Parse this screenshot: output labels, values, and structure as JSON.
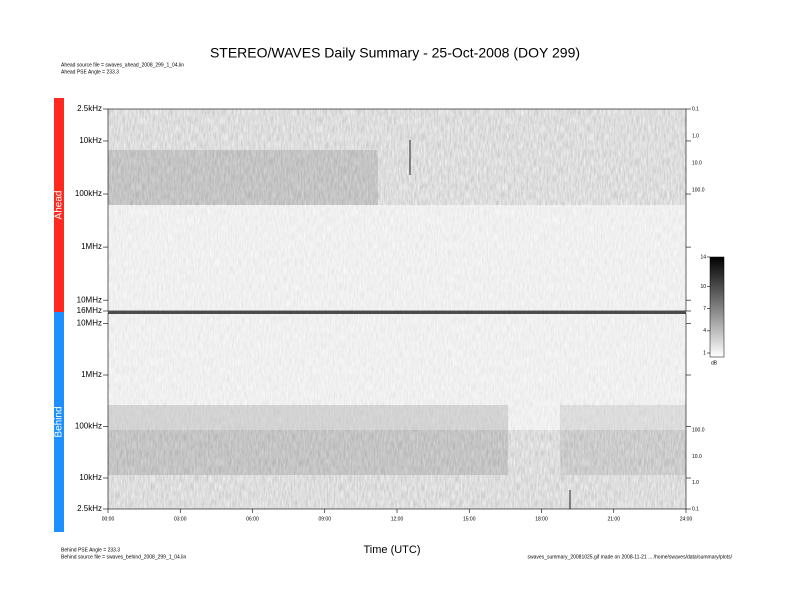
{
  "chart_data": [
    {
      "type": "spectrogram",
      "title": "STEREO/WAVES Daily Summary - 25-Oct-2008 (DOY 299)",
      "name": "Ahead",
      "color": "#ff2a1f",
      "annotations": [
        "Ahead source file = swaves_ahead_2008_299_1_04.lin",
        "Ahead PSE Angle = 233.3"
      ],
      "y_log": true,
      "y_direction": "down",
      "ylim": [
        2500,
        16000000
      ],
      "yticks": [
        {
          "value": 2500,
          "label": "2.5kHz"
        },
        {
          "value": 10000,
          "label": "10kHz"
        },
        {
          "value": 100000,
          "label": "100kHz"
        },
        {
          "value": 1000000,
          "label": "1MHz"
        },
        {
          "value": 10000000,
          "label": "10MHz"
        },
        {
          "value": 16000000,
          "label": "16MHz"
        }
      ],
      "y2lim": [
        0.1,
        3000000
      ],
      "y2ticks": [
        0.1,
        {
          "value": 1,
          "label": "1.0"
        },
        {
          "value": 10,
          "label": "10.0"
        },
        {
          "value": 100,
          "label": "100.0"
        }
      ],
      "colorbar": {
        "label": "dB",
        "lim": [
          1,
          14
        ],
        "ticks": [
          14,
          10,
          7,
          4,
          1
        ]
      }
    },
    {
      "type": "spectrogram",
      "name": "Behind",
      "color": "#1e8fff",
      "annotations": [
        "Behind PSE Angle = 233.3",
        "Behind source file = swaves_behind_2008_299_1_04.lin"
      ],
      "footer": "swaves_summary_20081025.gif made on 2008-11-21 ... /home/swaves/data/summary/plots/",
      "y_log": true,
      "y_direction": "up",
      "ylim": [
        2500,
        16000000
      ],
      "yticks": [
        {
          "value": 10000000,
          "label": "10MHz"
        },
        {
          "value": 1000000,
          "label": "1MHz"
        },
        {
          "value": 100000,
          "label": "100kHz"
        },
        {
          "value": 10000,
          "label": "10kHz"
        },
        {
          "value": 2500,
          "label": "2.5kHz"
        }
      ],
      "y2lim": [
        0.1,
        3000000
      ],
      "y2ticks": [
        {
          "value": 100,
          "label": "100.0"
        },
        {
          "value": 10,
          "label": "10.0"
        },
        {
          "value": 1,
          "label": "1.0"
        },
        0.1
      ],
      "xlabel": "Time (UTC)",
      "xlim": [
        0,
        24
      ],
      "xticks": [
        {
          "value": 0,
          "label": "00:00"
        },
        {
          "value": 3,
          "label": "03:00"
        },
        {
          "value": 6,
          "label": "06:00"
        },
        {
          "value": 9,
          "label": "09:00"
        },
        {
          "value": 12,
          "label": "12:00"
        },
        {
          "value": 15,
          "label": "15:00"
        },
        {
          "value": 18,
          "label": "18:00"
        },
        {
          "value": 21,
          "label": "21:00"
        },
        {
          "value": 24,
          "label": "24:00"
        }
      ]
    }
  ]
}
